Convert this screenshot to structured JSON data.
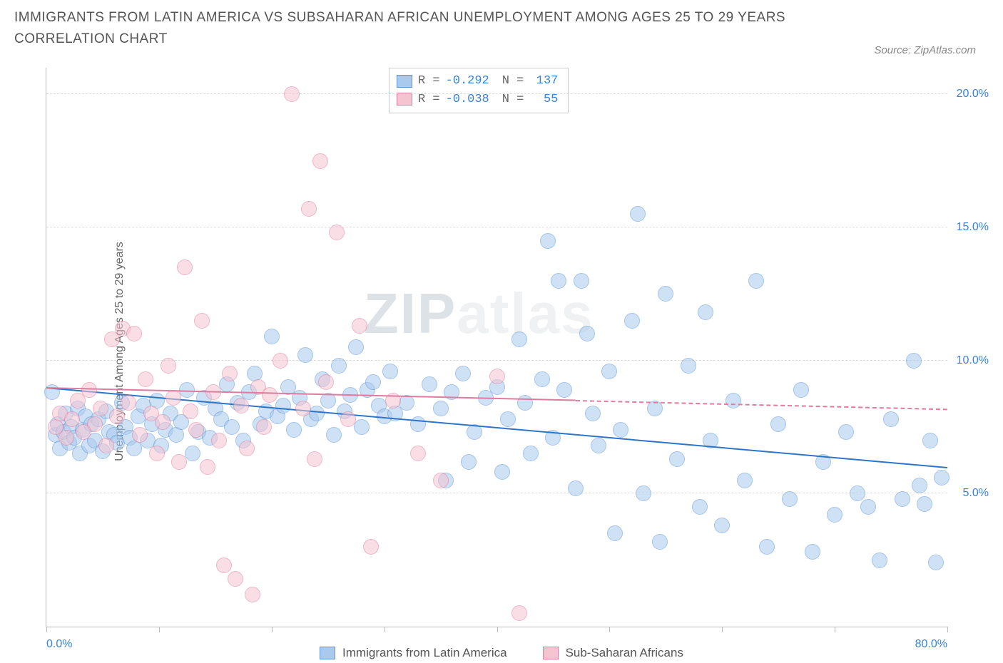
{
  "title": "IMMIGRANTS FROM LATIN AMERICA VS SUBSAHARAN AFRICAN UNEMPLOYMENT AMONG AGES 25 TO 29 YEARS CORRELATION CHART",
  "source": "Source: ZipAtlas.com",
  "ylabel": "Unemployment Among Ages 25 to 29 years",
  "watermark_z": "ZIP",
  "watermark_rest": "atlas",
  "chart": {
    "type": "scatter",
    "xlim": [
      0,
      80
    ],
    "ylim": [
      0,
      21
    ],
    "xticks_major": [
      0,
      10,
      20,
      30,
      40,
      50,
      60,
      70,
      80
    ],
    "xtick_labels": [
      {
        "x": 0,
        "label": "0.0%"
      },
      {
        "x": 80,
        "label": "80.0%"
      }
    ],
    "yticks": [
      {
        "y": 5,
        "label": "5.0%"
      },
      {
        "y": 10,
        "label": "10.0%"
      },
      {
        "y": 15,
        "label": "15.0%"
      },
      {
        "y": 20,
        "label": "20.0%"
      }
    ],
    "grid_color": "#dddddd",
    "axis_color": "#bbbbbb",
    "background": "#ffffff",
    "point_radius": 10,
    "point_opacity": 0.55,
    "series": [
      {
        "name": "Immigrants from Latin America",
        "fill": "#a9c9ed",
        "stroke": "#5c94d6",
        "line_color": "#2e74c8",
        "R": "-0.292",
        "N": "137",
        "regression": {
          "x1": 0,
          "y1": 9.0,
          "x2": 80,
          "y2": 6.0,
          "dash_from_x": 80
        },
        "points": [
          [
            0.5,
            8.8
          ],
          [
            0.8,
            7.2
          ],
          [
            1.0,
            7.6
          ],
          [
            1.2,
            6.7
          ],
          [
            1.5,
            7.3
          ],
          [
            1.7,
            8.0
          ],
          [
            2.0,
            6.9
          ],
          [
            2.2,
            7.5
          ],
          [
            2.5,
            7.1
          ],
          [
            2.8,
            8.2
          ],
          [
            3.0,
            6.5
          ],
          [
            3.2,
            7.4
          ],
          [
            3.5,
            7.9
          ],
          [
            3.8,
            6.8
          ],
          [
            4.0,
            7.6
          ],
          [
            4.3,
            7.0
          ],
          [
            4.6,
            7.8
          ],
          [
            5.0,
            6.6
          ],
          [
            5.3,
            8.1
          ],
          [
            5.6,
            7.3
          ],
          [
            6.0,
            7.2
          ],
          [
            6.3,
            6.9
          ],
          [
            6.7,
            8.4
          ],
          [
            7.0,
            7.5
          ],
          [
            7.4,
            7.1
          ],
          [
            7.8,
            6.7
          ],
          [
            8.2,
            7.9
          ],
          [
            8.6,
            8.3
          ],
          [
            9.0,
            7.0
          ],
          [
            9.4,
            7.6
          ],
          [
            9.8,
            8.5
          ],
          [
            10.2,
            6.8
          ],
          [
            10.6,
            7.4
          ],
          [
            11.0,
            8.0
          ],
          [
            11.5,
            7.2
          ],
          [
            12.0,
            7.7
          ],
          [
            12.5,
            8.9
          ],
          [
            13.0,
            6.5
          ],
          [
            13.5,
            7.3
          ],
          [
            14.0,
            8.6
          ],
          [
            14.5,
            7.1
          ],
          [
            15.0,
            8.2
          ],
          [
            15.5,
            7.8
          ],
          [
            16.0,
            9.1
          ],
          [
            16.5,
            7.5
          ],
          [
            17.0,
            8.4
          ],
          [
            17.5,
            7.0
          ],
          [
            18.0,
            8.8
          ],
          [
            18.5,
            9.5
          ],
          [
            19.0,
            7.6
          ],
          [
            19.5,
            8.1
          ],
          [
            20.0,
            10.9
          ],
          [
            20.5,
            7.9
          ],
          [
            21.0,
            8.3
          ],
          [
            21.5,
            9.0
          ],
          [
            22.0,
            7.4
          ],
          [
            22.5,
            8.6
          ],
          [
            23.0,
            10.2
          ],
          [
            23.5,
            7.8
          ],
          [
            24.0,
            8.0
          ],
          [
            24.5,
            9.3
          ],
          [
            25.0,
            8.5
          ],
          [
            25.5,
            7.2
          ],
          [
            26.0,
            9.8
          ],
          [
            26.5,
            8.1
          ],
          [
            27.0,
            8.7
          ],
          [
            27.5,
            10.5
          ],
          [
            28.0,
            7.5
          ],
          [
            28.5,
            8.9
          ],
          [
            29.0,
            9.2
          ],
          [
            29.5,
            8.3
          ],
          [
            30.0,
            7.9
          ],
          [
            30.5,
            9.6
          ],
          [
            31.0,
            8.0
          ],
          [
            32.0,
            8.4
          ],
          [
            33.0,
            7.6
          ],
          [
            34.0,
            9.1
          ],
          [
            35.0,
            8.2
          ],
          [
            35.5,
            5.5
          ],
          [
            36.0,
            8.8
          ],
          [
            37.0,
            9.5
          ],
          [
            37.5,
            6.2
          ],
          [
            38.0,
            7.3
          ],
          [
            39.0,
            8.6
          ],
          [
            40.0,
            9.0
          ],
          [
            40.5,
            5.8
          ],
          [
            41.0,
            7.8
          ],
          [
            42.0,
            10.8
          ],
          [
            42.5,
            8.4
          ],
          [
            43.0,
            6.5
          ],
          [
            44.0,
            9.3
          ],
          [
            44.5,
            14.5
          ],
          [
            45.0,
            7.1
          ],
          [
            45.5,
            13.0
          ],
          [
            46.0,
            8.9
          ],
          [
            47.0,
            5.2
          ],
          [
            47.5,
            13.0
          ],
          [
            48.0,
            11.0
          ],
          [
            48.5,
            8.0
          ],
          [
            49.0,
            6.8
          ],
          [
            50.0,
            9.6
          ],
          [
            50.5,
            3.5
          ],
          [
            51.0,
            7.4
          ],
          [
            52.0,
            11.5
          ],
          [
            52.5,
            15.5
          ],
          [
            53.0,
            5.0
          ],
          [
            54.0,
            8.2
          ],
          [
            54.5,
            3.2
          ],
          [
            55.0,
            12.5
          ],
          [
            56.0,
            6.3
          ],
          [
            57.0,
            9.8
          ],
          [
            58.0,
            4.5
          ],
          [
            58.5,
            11.8
          ],
          [
            59.0,
            7.0
          ],
          [
            60.0,
            3.8
          ],
          [
            61.0,
            8.5
          ],
          [
            62.0,
            5.5
          ],
          [
            63.0,
            13.0
          ],
          [
            64.0,
            3.0
          ],
          [
            65.0,
            7.6
          ],
          [
            66.0,
            4.8
          ],
          [
            67.0,
            8.9
          ],
          [
            68.0,
            2.8
          ],
          [
            69.0,
            6.2
          ],
          [
            70.0,
            4.2
          ],
          [
            71.0,
            7.3
          ],
          [
            72.0,
            5.0
          ],
          [
            73.0,
            4.5
          ],
          [
            74.0,
            2.5
          ],
          [
            75.0,
            7.8
          ],
          [
            76.0,
            4.8
          ],
          [
            77.0,
            10.0
          ],
          [
            77.5,
            5.3
          ],
          [
            78.0,
            4.6
          ],
          [
            78.5,
            7.0
          ],
          [
            79.0,
            2.4
          ],
          [
            79.5,
            5.6
          ]
        ]
      },
      {
        "name": "Sub-Saharan Africans",
        "fill": "#f5c4d1",
        "stroke": "#e07ba0",
        "line_color": "#e07ba0",
        "R": "-0.038",
        "N": "55",
        "regression": {
          "x1": 0,
          "y1": 9.0,
          "x2": 80,
          "y2": 8.2,
          "dash_from_x": 47
        },
        "points": [
          [
            0.8,
            7.5
          ],
          [
            1.2,
            8.0
          ],
          [
            1.8,
            7.1
          ],
          [
            2.3,
            7.8
          ],
          [
            2.8,
            8.5
          ],
          [
            3.3,
            7.3
          ],
          [
            3.8,
            8.9
          ],
          [
            4.3,
            7.6
          ],
          [
            4.8,
            8.2
          ],
          [
            5.3,
            6.8
          ],
          [
            5.8,
            10.8
          ],
          [
            6.3,
            7.9
          ],
          [
            6.8,
            11.2
          ],
          [
            7.3,
            8.4
          ],
          [
            7.8,
            11.0
          ],
          [
            8.3,
            7.2
          ],
          [
            8.8,
            9.3
          ],
          [
            9.3,
            8.0
          ],
          [
            9.8,
            6.5
          ],
          [
            10.3,
            7.7
          ],
          [
            10.8,
            9.8
          ],
          [
            11.3,
            8.6
          ],
          [
            11.8,
            6.2
          ],
          [
            12.3,
            13.5
          ],
          [
            12.8,
            8.1
          ],
          [
            13.3,
            7.4
          ],
          [
            13.8,
            11.5
          ],
          [
            14.3,
            6.0
          ],
          [
            14.8,
            8.8
          ],
          [
            15.3,
            7.0
          ],
          [
            15.8,
            2.3
          ],
          [
            16.3,
            9.5
          ],
          [
            16.8,
            1.8
          ],
          [
            17.3,
            8.3
          ],
          [
            17.8,
            6.7
          ],
          [
            18.3,
            1.2
          ],
          [
            18.8,
            9.0
          ],
          [
            19.3,
            7.5
          ],
          [
            19.8,
            8.7
          ],
          [
            20.8,
            10.0
          ],
          [
            21.8,
            20.0
          ],
          [
            22.8,
            8.2
          ],
          [
            23.3,
            15.7
          ],
          [
            23.8,
            6.3
          ],
          [
            24.3,
            17.5
          ],
          [
            24.8,
            9.2
          ],
          [
            25.8,
            14.8
          ],
          [
            26.8,
            7.8
          ],
          [
            27.8,
            11.3
          ],
          [
            28.8,
            3.0
          ],
          [
            30.8,
            8.5
          ],
          [
            33.0,
            6.5
          ],
          [
            35.0,
            5.5
          ],
          [
            40.0,
            9.4
          ],
          [
            42.0,
            0.5
          ]
        ]
      }
    ]
  },
  "stats_labels": {
    "R": "R =",
    "N": "N ="
  },
  "colors": {
    "title": "#555555",
    "source": "#888888",
    "axis_label": "#666666",
    "tick_label": "#3b82d6"
  }
}
